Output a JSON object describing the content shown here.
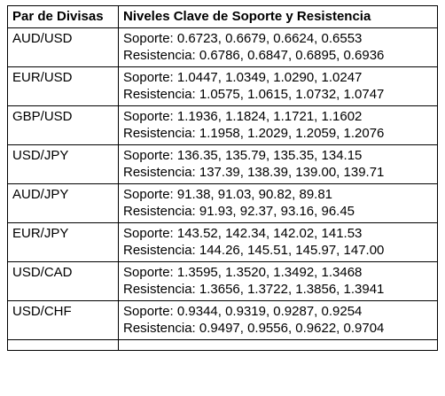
{
  "header": {
    "pair_label": "Par de Divisas",
    "levels_label": "Niveles Clave de Soporte y Resistencia"
  },
  "rows": [
    {
      "pair": "AUD/USD",
      "support": "Soporte: 0.6723, 0.6679, 0.6624, 0.6553",
      "resistance": "Resistencia: 0.6786, 0.6847, 0.6895, 0.6936"
    },
    {
      "pair": "EUR/USD",
      "support": "Soporte: 1.0447, 1.0349, 1.0290, 1.0247",
      "resistance": "Resistencia: 1.0575, 1.0615, 1.0732, 1.0747"
    },
    {
      "pair": "GBP/USD",
      "support": "Soporte: 1.1936, 1.1824, 1.1721, 1.1602",
      "resistance": "Resistencia: 1.1958, 1.2029, 1.2059, 1.2076"
    },
    {
      "pair": "USD/JPY",
      "support": "Soporte: 136.35, 135.79, 135.35, 134.15",
      "resistance": "Resistencia: 137.39, 138.39, 139.00, 139.71"
    },
    {
      "pair": "AUD/JPY",
      "support": "Soporte: 91.38, 91.03, 90.82, 89.81",
      "resistance": "Resistencia: 91.93, 92.37, 93.16, 96.45"
    },
    {
      "pair": "EUR/JPY",
      "support": "Soporte: 143.52, 142.34, 142.02, 141.53",
      "resistance": "Resistencia: 144.26, 145.51, 145.97, 147.00"
    },
    {
      "pair": "USD/CAD",
      "support": "Soporte: 1.3595, 1.3520, 1.3492, 1.3468",
      "resistance": "Resistencia: 1.3656, 1.3722, 1.3856, 1.3941"
    },
    {
      "pair": "USD/CHF",
      "support": "Soporte: 0.9344, 0.9319, 0.9287, 0.9254",
      "resistance": "Resistencia: 0.9497, 0.9556, 0.9622, 0.9704"
    }
  ]
}
